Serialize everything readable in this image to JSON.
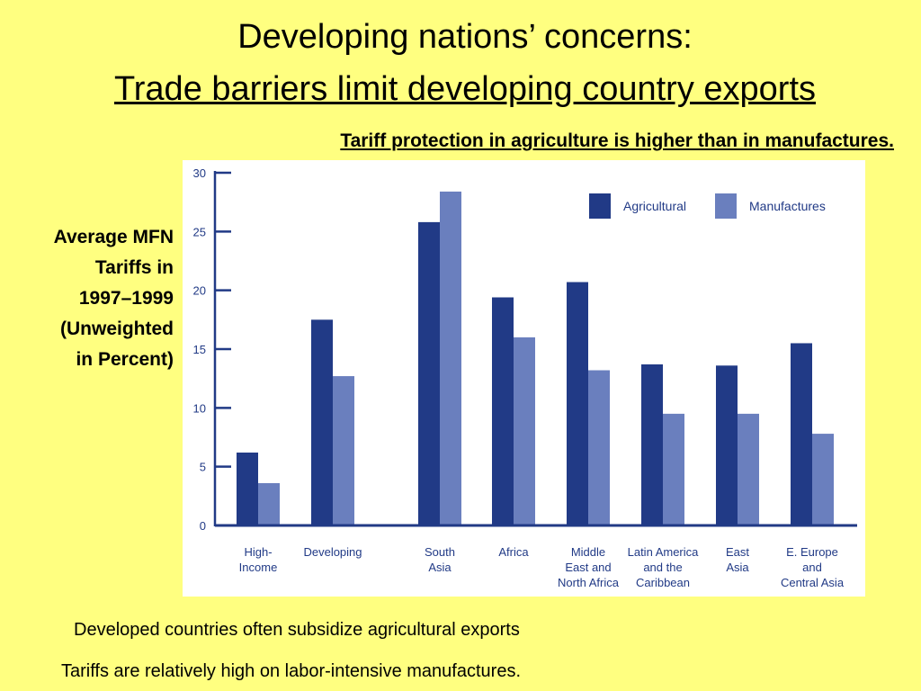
{
  "slide": {
    "title_line1": "Developing nations’ concerns:",
    "title_line2": "Trade barriers limit developing country exports",
    "subhead": "Tariff protection in agriculture is higher than in manufactures.",
    "ylabel": "Average MFN\nTariffs in\n1997–1999\n(Unweighted\nin Percent)",
    "note1": "Developed countries often subsidize agricultural exports",
    "note2": "Tariffs are relatively high on labor-intensive manufactures."
  },
  "colors": {
    "background": "#FFFF80",
    "agricultural": "#213A86",
    "manufactures": "#6A7FBE",
    "axis": "#213A86"
  },
  "chart_data": {
    "type": "bar",
    "categories": [
      [
        "High-",
        "Income"
      ],
      [
        "Developing"
      ],
      [
        "South",
        "Asia"
      ],
      [
        "Africa"
      ],
      [
        "Middle",
        "East and",
        "North Africa"
      ],
      [
        "Latin America",
        "and the",
        "Caribbean"
      ],
      [
        "East",
        "Asia"
      ],
      [
        "E. Europe",
        "and",
        "Central Asia"
      ]
    ],
    "series": [
      {
        "name": "Agricultural",
        "values": [
          6.2,
          17.5,
          25.8,
          19.4,
          20.7,
          13.7,
          13.6,
          15.5
        ]
      },
      {
        "name": "Manufactures",
        "values": [
          3.6,
          12.7,
          28.4,
          16.0,
          13.2,
          9.5,
          9.5,
          7.8
        ]
      }
    ],
    "yticks": [
      0,
      5,
      10,
      15,
      20,
      25,
      30
    ],
    "ylim": [
      0,
      30
    ],
    "legend_position": "top-right",
    "grid": false
  }
}
